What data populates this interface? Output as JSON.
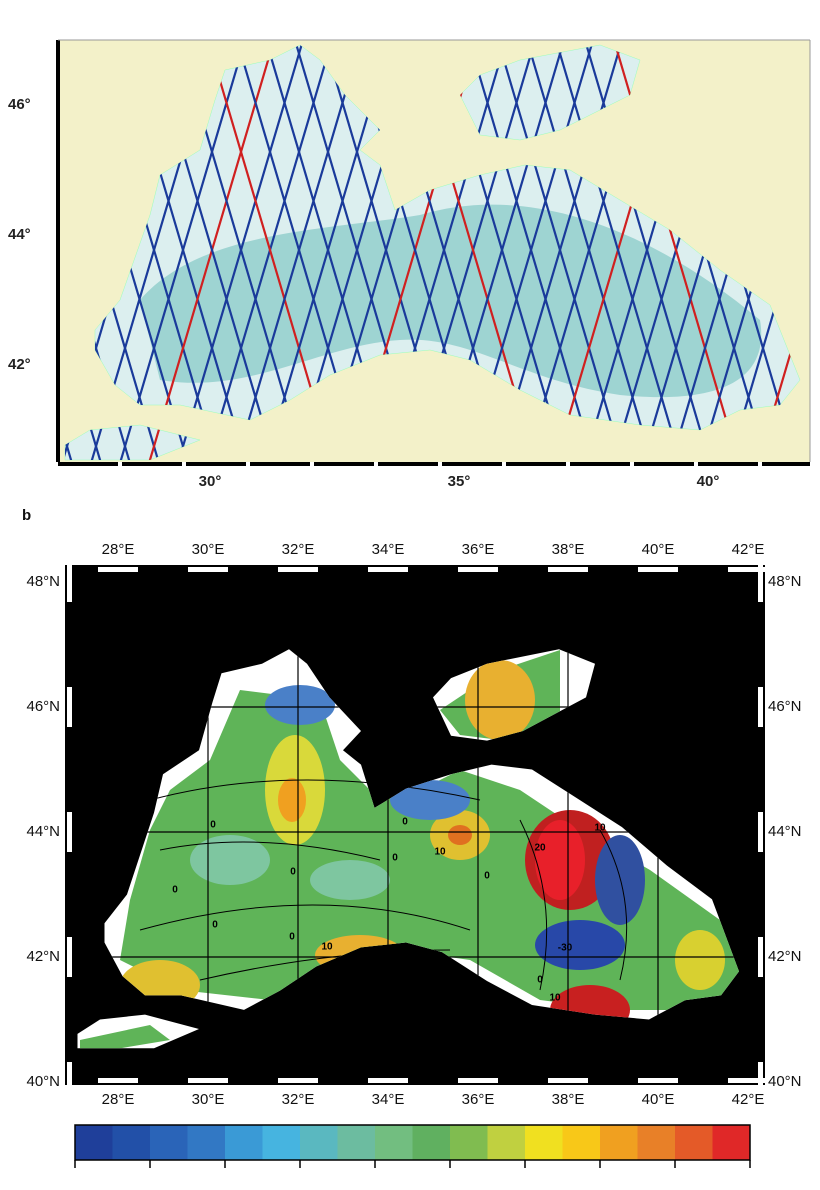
{
  "panel_a": {
    "lat_labels": [
      "46°",
      "44°",
      "42°"
    ],
    "lon_labels": [
      "30°",
      "35°",
      "40°"
    ]
  },
  "panel_b": {
    "label": "b",
    "lon_labels_top": [
      "28°E",
      "30°E",
      "32°E",
      "34°E",
      "36°E",
      "38°E",
      "40°E",
      "42°E"
    ],
    "lon_labels_bottom": [
      "28°E",
      "30°E",
      "32°E",
      "34°E",
      "36°E",
      "38°E",
      "40°E",
      "42°E"
    ],
    "lat_labels_left": [
      "48°N",
      "46°N",
      "44°N",
      "42°N",
      "40°N"
    ],
    "lat_labels_right": [
      "48°N",
      "46°N",
      "44°N",
      "42°N",
      "40°N"
    ],
    "contour_labels": [
      "0",
      "0",
      "0",
      "0",
      "0",
      "0",
      "0",
      "0",
      "10",
      "10",
      "10",
      "20",
      "-30",
      "0",
      "10"
    ]
  }
}
